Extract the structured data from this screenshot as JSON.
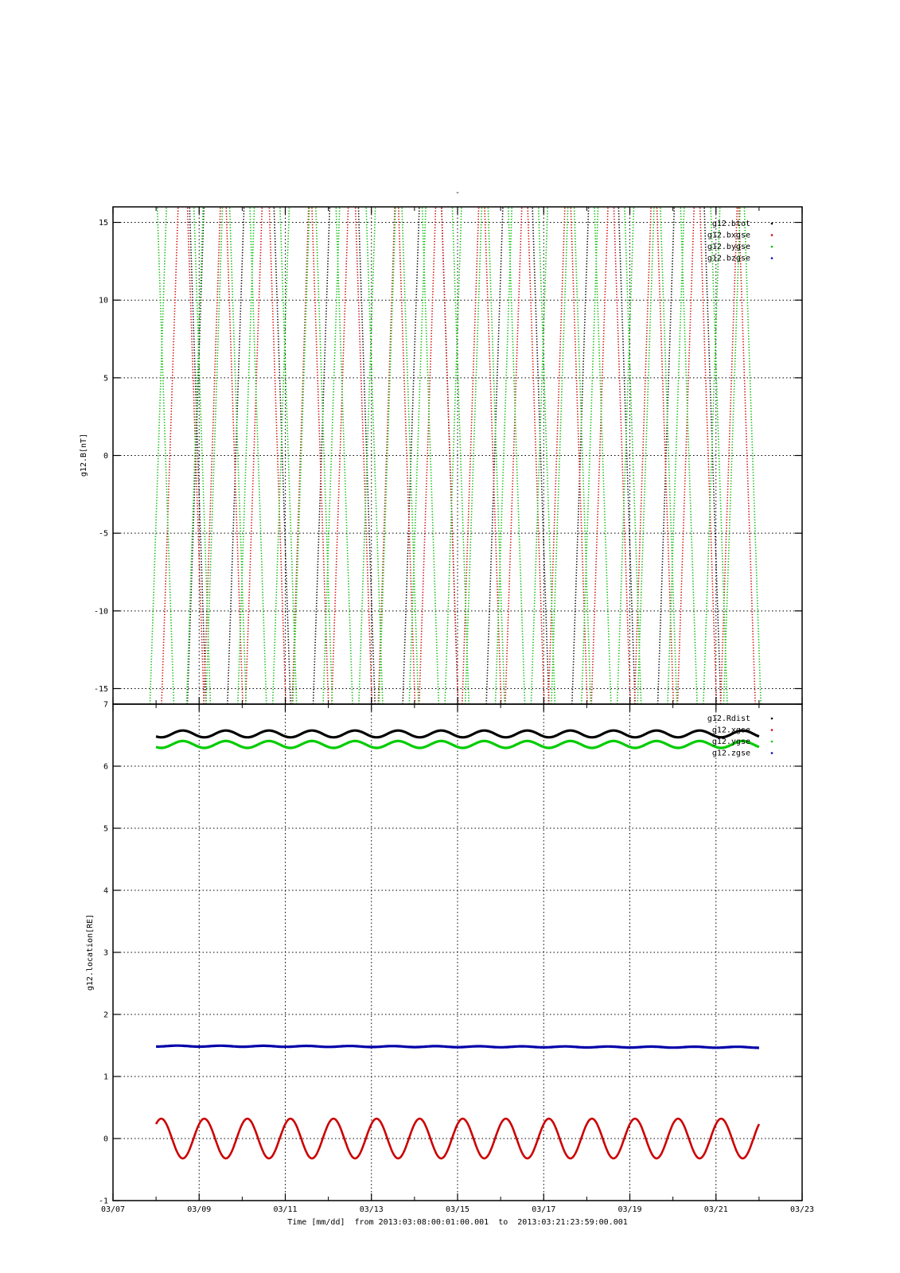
{
  "figure": {
    "title": "-",
    "footer": {
      "xlabel": "Time [mm/dd]",
      "range_from_label": "from",
      "range_from": "2013:03:08:00:01:00.001",
      "range_to_label": "to",
      "range_to": "2013:03:21:23:59:00.001"
    },
    "x_axis": {
      "tick_labels": [
        "03/07",
        "03/09",
        "03/11",
        "03/13",
        "03/15",
        "03/17",
        "03/19",
        "03/21",
        "03/23"
      ],
      "tick_days": [
        7,
        9,
        11,
        13,
        15,
        17,
        19,
        21,
        23
      ],
      "minor_tick_days": [
        8,
        10,
        12,
        14,
        16,
        18,
        20,
        22
      ],
      "range_days": [
        7,
        23
      ],
      "date_prefix": "2013-03"
    }
  },
  "chart_data": [
    {
      "type": "scatter",
      "ylabel": "g12.B[nT]",
      "ylim": [
        -16,
        16
      ],
      "yticks": [
        -15,
        -10,
        -5,
        0,
        5,
        10,
        15
      ],
      "ytick_labels": [
        "-15",
        "-10",
        "-5",
        "0",
        "5",
        "10",
        "15"
      ],
      "grid": true,
      "legend_position": "top-right",
      "x_start_day": 8.0,
      "x_end_day": 22.0,
      "series": [
        {
          "name": "g12.btot",
          "color": "#000000",
          "marker": "dot",
          "crossings_day": [
            8.92,
            8.97,
            9.85,
            10.93,
            11.84,
            12.89,
            13.92,
            14.82,
            15.86,
            16.93,
            17.85,
            18.93,
            19.84,
            20.92
          ]
        },
        {
          "name": "g12.bxgse",
          "color": "#cc0000",
          "marker": "dot",
          "crossings_day": [
            8.32,
            8.92,
            9.3,
            9.82,
            10.27,
            10.82,
            11.35,
            11.81,
            12.27,
            12.82,
            13.35,
            13.82,
            14.3,
            14.82,
            15.3,
            15.82,
            16.3,
            16.82,
            17.3,
            17.82,
            18.3,
            18.82,
            19.3,
            19.82,
            20.3,
            20.82,
            21.3,
            21.72
          ]
        },
        {
          "name": "g12.bygse",
          "color": "#00bb00",
          "marker": "dot",
          "crossings_day": [
            8.05,
            8.22,
            8.9,
            9.07,
            9.35,
            9.9,
            10.09,
            10.37,
            10.9,
            11.07,
            11.37,
            11.9,
            12.07,
            12.37,
            12.9,
            13.07,
            13.37,
            13.9,
            14.07,
            14.37,
            14.9,
            15.07,
            15.37,
            15.9,
            16.07,
            16.37,
            16.9,
            17.07,
            17.37,
            17.9,
            18.07,
            18.37,
            18.9,
            19.07,
            19.37,
            19.9,
            20.07,
            20.37,
            20.9,
            21.07,
            21.37,
            21.85
          ]
        },
        {
          "name": "g12.bzgse",
          "color": "#0000bb",
          "marker": "dot",
          "crossings_day": []
        }
      ]
    },
    {
      "type": "scatter",
      "ylabel": "g12.location[RE]",
      "ylim": [
        -1,
        7
      ],
      "yticks": [
        -1,
        0,
        1,
        2,
        3,
        4,
        5,
        6,
        7
      ],
      "ytick_labels": [
        "-1",
        "0",
        "1",
        "2",
        "3",
        "4",
        "5",
        "6",
        "7"
      ],
      "grid": true,
      "legend_position": "top-right",
      "x_start_day": 8.0,
      "x_end_day": 22.0,
      "series": [
        {
          "name": "g12.Rdist",
          "color": "#000000",
          "marker": "dot",
          "mean": 6.52,
          "amplitude": 0.055,
          "phase_day": 8.62,
          "period_days": 1.0
        },
        {
          "name": "g12.xgse",
          "color": "#cc0000",
          "marker": "dot",
          "mean": 0.0,
          "amplitude": 0.32,
          "phase_day": 8.12,
          "period_days": 1.0
        },
        {
          "name": "g12.ygse",
          "color": "#00cc00",
          "marker": "dot",
          "mean": 6.35,
          "amplitude": 0.055,
          "phase_day": 8.62,
          "period_days": 1.0
        },
        {
          "name": "g12.zgse",
          "color": "#0000aa",
          "marker": "dot",
          "mean_start": 1.49,
          "mean_end": 1.47,
          "amplitude": 0.008,
          "phase_day": 8.5,
          "period_days": 1.0
        }
      ]
    }
  ]
}
